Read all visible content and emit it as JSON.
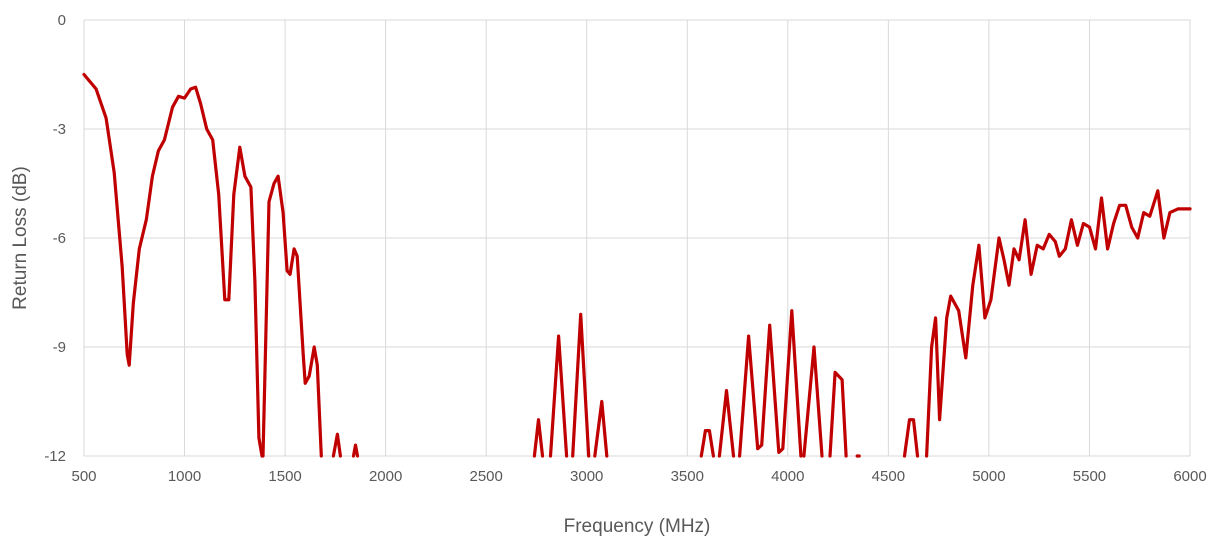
{
  "chart_data": {
    "type": "line",
    "xlabel": "Frequency (MHz)",
    "ylabel": "Return Loss (dB)",
    "xlim": [
      500,
      6000
    ],
    "ylim": [
      -12,
      0
    ],
    "x_ticks": [
      500,
      1000,
      1500,
      2000,
      2500,
      3000,
      3500,
      4000,
      4500,
      5000,
      5500,
      6000
    ],
    "y_ticks": [
      0,
      -3,
      -6,
      -9,
      -12
    ],
    "grid": true,
    "legend": "none",
    "series": [
      {
        "color": "#c00000",
        "segments": [
          [
            [
              500,
              -1.5
            ],
            [
              560,
              -1.9
            ],
            [
              610,
              -2.7
            ],
            [
              650,
              -4.2
            ],
            [
              690,
              -6.8
            ],
            [
              715,
              -9.2
            ],
            [
              725,
              -9.5
            ],
            [
              745,
              -7.8
            ],
            [
              775,
              -6.3
            ],
            [
              810,
              -5.5
            ],
            [
              840,
              -4.3
            ],
            [
              870,
              -3.6
            ],
            [
              900,
              -3.3
            ],
            [
              940,
              -2.4
            ],
            [
              970,
              -2.1
            ],
            [
              1000,
              -2.15
            ],
            [
              1030,
              -1.9
            ],
            [
              1055,
              -1.85
            ],
            [
              1080,
              -2.3
            ],
            [
              1110,
              -3.0
            ],
            [
              1140,
              -3.3
            ],
            [
              1170,
              -4.8
            ],
            [
              1200,
              -7.7
            ],
            [
              1220,
              -7.7
            ],
            [
              1245,
              -4.8
            ],
            [
              1275,
              -3.5
            ],
            [
              1300,
              -4.3
            ],
            [
              1330,
              -4.6
            ],
            [
              1350,
              -7.2
            ],
            [
              1370,
              -11.5
            ],
            [
              1385,
              -12.0
            ]
          ],
          [
            [
              1390,
              -12.0
            ],
            [
              1405,
              -8.5
            ],
            [
              1420,
              -5.0
            ],
            [
              1445,
              -4.5
            ],
            [
              1465,
              -4.3
            ],
            [
              1490,
              -5.3
            ],
            [
              1510,
              -6.9
            ],
            [
              1525,
              -7.0
            ],
            [
              1545,
              -6.3
            ],
            [
              1560,
              -6.5
            ],
            [
              1590,
              -9.2
            ],
            [
              1600,
              -10.0
            ],
            [
              1620,
              -9.8
            ],
            [
              1645,
              -9.0
            ],
            [
              1660,
              -9.5
            ],
            [
              1680,
              -12.0
            ]
          ],
          [
            [
              1740,
              -12.0
            ],
            [
              1760,
              -11.4
            ],
            [
              1775,
              -12.0
            ]
          ],
          [
            [
              1840,
              -12.0
            ],
            [
              1850,
              -11.7
            ],
            [
              1860,
              -12.0
            ]
          ],
          [
            [
              2740,
              -12.0
            ],
            [
              2760,
              -11.0
            ],
            [
              2780,
              -12.0
            ]
          ],
          [
            [
              2820,
              -12.0
            ],
            [
              2860,
              -8.7
            ],
            [
              2900,
              -12.0
            ]
          ],
          [
            [
              2930,
              -12.0
            ],
            [
              2970,
              -8.1
            ],
            [
              3010,
              -12.0
            ]
          ],
          [
            [
              3040,
              -12.0
            ],
            [
              3075,
              -10.5
            ],
            [
              3100,
              -12.0
            ]
          ],
          [
            [
              3570,
              -12.0
            ],
            [
              3590,
              -11.3
            ],
            [
              3610,
              -11.3
            ],
            [
              3630,
              -12.0
            ]
          ],
          [
            [
              3660,
              -12.0
            ],
            [
              3695,
              -10.2
            ],
            [
              3730,
              -12.0
            ]
          ],
          [
            [
              3760,
              -12.0
            ],
            [
              3805,
              -8.7
            ],
            [
              3850,
              -11.8
            ],
            [
              3870,
              -11.7
            ],
            [
              3910,
              -8.4
            ],
            [
              3955,
              -11.9
            ],
            [
              3975,
              -11.8
            ],
            [
              4020,
              -8.0
            ],
            [
              4065,
              -12.0
            ]
          ],
          [
            [
              4080,
              -12.0
            ],
            [
              4130,
              -9.0
            ],
            [
              4170,
              -12.0
            ]
          ],
          [
            [
              4210,
              -12.0
            ],
            [
              4235,
              -9.7
            ],
            [
              4270,
              -9.9
            ],
            [
              4290,
              -12.0
            ]
          ],
          [
            [
              4345,
              -12.0
            ],
            [
              4355,
              -12.0
            ]
          ],
          [
            [
              4580,
              -12.0
            ],
            [
              4605,
              -11.0
            ],
            [
              4625,
              -11.0
            ],
            [
              4645,
              -12.0
            ]
          ],
          [
            [
              4690,
              -12.0
            ],
            [
              4715,
              -9.0
            ],
            [
              4735,
              -8.2
            ],
            [
              4755,
              -11.0
            ],
            [
              4790,
              -8.2
            ],
            [
              4810,
              -7.6
            ],
            [
              4850,
              -8.0
            ],
            [
              4885,
              -9.3
            ],
            [
              4920,
              -7.3
            ],
            [
              4950,
              -6.2
            ],
            [
              4980,
              -8.2
            ],
            [
              5010,
              -7.7
            ],
            [
              5050,
              -6.0
            ],
            [
              5075,
              -6.6
            ],
            [
              5100,
              -7.3
            ],
            [
              5125,
              -6.3
            ],
            [
              5150,
              -6.6
            ],
            [
              5180,
              -5.5
            ],
            [
              5210,
              -7.0
            ],
            [
              5240,
              -6.2
            ],
            [
              5270,
              -6.3
            ],
            [
              5300,
              -5.9
            ],
            [
              5330,
              -6.1
            ],
            [
              5350,
              -6.5
            ],
            [
              5380,
              -6.3
            ],
            [
              5410,
              -5.5
            ],
            [
              5440,
              -6.2
            ],
            [
              5470,
              -5.6
            ],
            [
              5500,
              -5.7
            ],
            [
              5530,
              -6.3
            ],
            [
              5560,
              -4.9
            ],
            [
              5590,
              -6.3
            ],
            [
              5620,
              -5.6
            ],
            [
              5650,
              -5.1
            ],
            [
              5680,
              -5.1
            ],
            [
              5710,
              -5.7
            ],
            [
              5740,
              -6.0
            ],
            [
              5770,
              -5.3
            ],
            [
              5800,
              -5.4
            ],
            [
              5840,
              -4.7
            ],
            [
              5870,
              -6.0
            ],
            [
              5900,
              -5.3
            ],
            [
              5940,
              -5.2
            ],
            [
              5970,
              -5.2
            ],
            [
              6000,
              -5.2
            ]
          ]
        ]
      }
    ]
  }
}
